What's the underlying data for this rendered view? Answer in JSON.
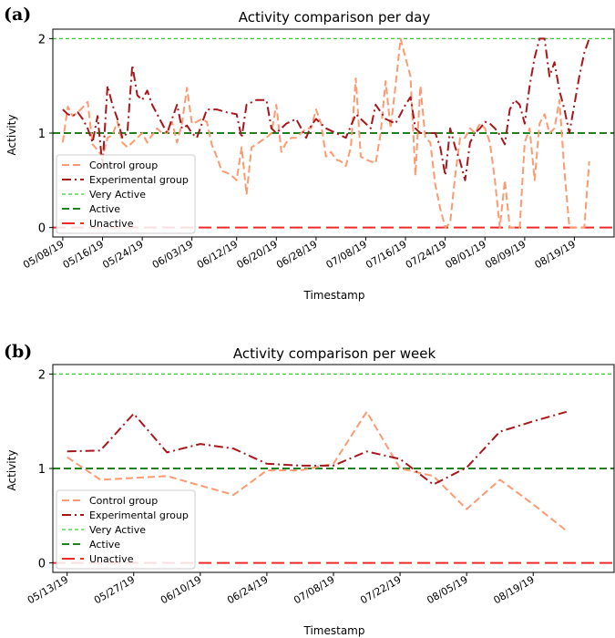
{
  "colors": {
    "control": "#fc9a72",
    "experimental": "#a8161c",
    "very_active": "#32cd32",
    "active": "#208020",
    "unactive": "#ee2b2b"
  },
  "chart_data": [
    {
      "type": "line",
      "panel": "(a)",
      "title": "Activity comparison per day",
      "xlabel": "Timestamp",
      "ylabel": "Activity",
      "ylim": [
        -0.1,
        2.1
      ],
      "yticks": [
        "0",
        "1",
        "2"
      ],
      "xlim": [
        "2019-05-06",
        "2019-08-27"
      ],
      "xticks": [
        {
          "date": "2019-05-08",
          "label": "05/08/19"
        },
        {
          "date": "2019-05-16",
          "label": "05/16/19"
        },
        {
          "date": "2019-05-24",
          "label": "05/24/19"
        },
        {
          "date": "2019-06-03",
          "label": "06/03/19"
        },
        {
          "date": "2019-06-12",
          "label": "06/12/19"
        },
        {
          "date": "2019-06-20",
          "label": "06/20/19"
        },
        {
          "date": "2019-06-28",
          "label": "06/28/19"
        },
        {
          "date": "2019-07-08",
          "label": "07/08/19"
        },
        {
          "date": "2019-07-16",
          "label": "07/16/19"
        },
        {
          "date": "2019-07-24",
          "label": "07/24/19"
        },
        {
          "date": "2019-08-01",
          "label": "08/01/19"
        },
        {
          "date": "2019-08-09",
          "label": "08/09/19"
        },
        {
          "date": "2019-08-19",
          "label": "08/19/19"
        }
      ],
      "legend": [
        "Control group",
        "Experimental group",
        "Very Active",
        "Active",
        "Unactive"
      ],
      "legend_position": "lower-left",
      "reference_lines": [
        {
          "name": "Very Active",
          "y": 2,
          "style": "dashed-fine",
          "color_key": "very_active"
        },
        {
          "name": "Active",
          "y": 1,
          "style": "dashed",
          "color_key": "active"
        },
        {
          "name": "Unactive",
          "y": 0,
          "style": "dashed-long",
          "color_key": "unactive"
        }
      ],
      "series": [
        {
          "name": "Control group",
          "style": "dashed",
          "color_key": "control",
          "x": [
            "2019-05-08",
            "2019-05-09",
            "2019-05-10",
            "2019-05-11",
            "2019-05-12",
            "2019-05-13",
            "2019-05-14",
            "2019-05-15",
            "2019-05-16",
            "2019-05-17",
            "2019-05-18",
            "2019-05-19",
            "2019-05-20",
            "2019-05-21",
            "2019-05-22",
            "2019-05-23",
            "2019-05-24",
            "2019-05-25",
            "2019-05-26",
            "2019-05-27",
            "2019-05-28",
            "2019-05-29",
            "2019-05-30",
            "2019-05-31",
            "2019-06-01",
            "2019-06-02",
            "2019-06-03",
            "2019-06-04",
            "2019-06-05",
            "2019-06-06",
            "2019-06-07",
            "2019-06-08",
            "2019-06-09",
            "2019-06-10",
            "2019-06-11",
            "2019-06-12",
            "2019-06-13",
            "2019-06-14",
            "2019-06-15",
            "2019-06-16",
            "2019-06-17",
            "2019-06-18",
            "2019-06-19",
            "2019-06-20",
            "2019-06-21",
            "2019-06-22",
            "2019-06-23",
            "2019-06-24",
            "2019-06-25",
            "2019-06-26",
            "2019-06-27",
            "2019-06-28",
            "2019-06-29",
            "2019-06-30",
            "2019-07-01",
            "2019-07-02",
            "2019-07-03",
            "2019-07-04",
            "2019-07-05",
            "2019-07-06",
            "2019-07-07",
            "2019-07-08",
            "2019-07-09",
            "2019-07-10",
            "2019-07-11",
            "2019-07-12",
            "2019-07-13",
            "2019-07-14",
            "2019-07-15",
            "2019-07-16",
            "2019-07-17",
            "2019-07-18",
            "2019-07-19",
            "2019-07-20",
            "2019-07-21",
            "2019-07-22",
            "2019-07-23",
            "2019-07-24",
            "2019-07-25",
            "2019-07-26",
            "2019-07-27",
            "2019-07-28",
            "2019-07-29",
            "2019-07-30",
            "2019-07-31",
            "2019-08-01",
            "2019-08-02",
            "2019-08-03",
            "2019-08-04",
            "2019-08-05",
            "2019-08-06",
            "2019-08-07",
            "2019-08-08",
            "2019-08-09",
            "2019-08-10",
            "2019-08-11",
            "2019-08-12",
            "2019-08-13",
            "2019-08-14",
            "2019-08-15",
            "2019-08-16",
            "2019-08-17",
            "2019-08-18",
            "2019-08-19",
            "2019-08-20",
            "2019-08-21",
            "2019-08-22"
          ],
          "values": [
            0.9,
            1.28,
            1.18,
            1.22,
            1.27,
            1.33,
            0.88,
            0.82,
            0.75,
            0.95,
            0.98,
            1.12,
            0.9,
            0.85,
            0.9,
            0.95,
            1.0,
            0.9,
            0.98,
            1.05,
            1.0,
            1.0,
            1.12,
            0.9,
            1.1,
            1.48,
            1.1,
            1.12,
            1.15,
            1.12,
            0.88,
            0.75,
            0.6,
            0.58,
            0.55,
            0.5,
            0.85,
            0.35,
            0.85,
            0.88,
            0.92,
            0.95,
            1.0,
            1.3,
            0.8,
            0.9,
            0.95,
            0.95,
            1.0,
            1.05,
            1.05,
            1.25,
            1.1,
            0.75,
            0.8,
            0.72,
            0.7,
            0.65,
            0.85,
            1.58,
            0.75,
            0.72,
            0.7,
            0.68,
            1.0,
            1.55,
            1.05,
            1.5,
            2.0,
            1.8,
            1.6,
            0.55,
            1.5,
            0.95,
            0.9,
            0.45,
            0.2,
            0.0,
            0.05,
            0.55,
            0.95,
            0.95,
            1.05,
            1.0,
            1.1,
            1.05,
            0.9,
            0.5,
            0.0,
            0.5,
            0.0,
            0.0,
            0.0,
            0.9,
            1.05,
            0.5,
            1.1,
            1.2,
            1.0,
            1.05,
            1.35,
            0.6,
            0.0,
            0.0,
            0.0,
            0.0,
            0.7
          ]
        },
        {
          "name": "Experimental group",
          "style": "dashdot",
          "color_key": "experimental",
          "x": [
            "2019-05-08",
            "2019-05-09",
            "2019-05-10",
            "2019-05-11",
            "2019-05-12",
            "2019-05-13",
            "2019-05-14",
            "2019-05-15",
            "2019-05-16",
            "2019-05-17",
            "2019-05-18",
            "2019-05-19",
            "2019-05-20",
            "2019-05-21",
            "2019-05-22",
            "2019-05-23",
            "2019-05-24",
            "2019-05-25",
            "2019-05-26",
            "2019-05-27",
            "2019-05-28",
            "2019-05-29",
            "2019-05-30",
            "2019-05-31",
            "2019-06-01",
            "2019-06-02",
            "2019-06-03",
            "2019-06-04",
            "2019-06-06",
            "2019-06-08",
            "2019-06-10",
            "2019-06-12",
            "2019-06-13",
            "2019-06-14",
            "2019-06-16",
            "2019-06-18",
            "2019-06-19",
            "2019-06-20",
            "2019-06-22",
            "2019-06-24",
            "2019-06-26",
            "2019-06-27",
            "2019-06-28",
            "2019-06-30",
            "2019-07-02",
            "2019-07-04",
            "2019-07-06",
            "2019-07-08",
            "2019-07-09",
            "2019-07-10",
            "2019-07-12",
            "2019-07-14",
            "2019-07-15",
            "2019-07-16",
            "2019-07-17",
            "2019-07-18",
            "2019-07-19",
            "2019-07-20",
            "2019-07-21",
            "2019-07-22",
            "2019-07-23",
            "2019-07-24",
            "2019-07-25",
            "2019-07-26",
            "2019-07-27",
            "2019-07-28",
            "2019-07-29",
            "2019-07-30",
            "2019-07-31",
            "2019-08-01",
            "2019-08-02",
            "2019-08-03",
            "2019-08-04",
            "2019-08-05",
            "2019-08-06",
            "2019-08-07",
            "2019-08-08",
            "2019-08-09",
            "2019-08-10",
            "2019-08-11",
            "2019-08-12",
            "2019-08-13",
            "2019-08-14",
            "2019-08-15",
            "2019-08-16",
            "2019-08-17",
            "2019-08-18",
            "2019-08-19",
            "2019-08-20",
            "2019-08-21",
            "2019-08-22"
          ],
          "values": [
            1.25,
            1.2,
            1.18,
            1.22,
            1.15,
            1.05,
            0.9,
            1.18,
            0.65,
            1.5,
            1.3,
            1.15,
            0.95,
            1.0,
            1.72,
            1.4,
            1.35,
            1.45,
            1.3,
            1.2,
            1.1,
            1.0,
            1.15,
            1.3,
            1.05,
            1.08,
            1.0,
            0.95,
            1.25,
            1.25,
            1.22,
            1.2,
            0.95,
            1.3,
            1.35,
            1.35,
            1.05,
            1.0,
            1.1,
            1.15,
            0.95,
            1.08,
            1.15,
            1.05,
            1.0,
            0.95,
            1.2,
            1.1,
            1.05,
            1.3,
            1.15,
            1.1,
            1.2,
            1.3,
            1.38,
            1.05,
            1.0,
            1.0,
            1.0,
            1.0,
            0.85,
            0.55,
            1.05,
            0.85,
            0.7,
            0.5,
            0.9,
            1.0,
            1.05,
            1.12,
            1.1,
            1.05,
            0.98,
            0.88,
            1.25,
            1.35,
            1.3,
            1.1,
            1.5,
            1.8,
            2.0,
            2.0,
            1.6,
            1.75,
            1.45,
            1.25,
            1.0,
            1.3,
            1.6,
            1.85,
            2.0
          ]
        }
      ]
    },
    {
      "type": "line",
      "panel": "(b)",
      "title": "Activity comparison per week",
      "xlabel": "Timestamp",
      "ylabel": "Activity",
      "ylim": [
        -0.1,
        2.1
      ],
      "yticks": [
        "0",
        "1",
        "2"
      ],
      "xlim": [
        "2019-05-10",
        "2019-09-05"
      ],
      "xticks": [
        {
          "date": "2019-05-13",
          "label": "05/13/19"
        },
        {
          "date": "2019-05-27",
          "label": "05/27/19"
        },
        {
          "date": "2019-06-10",
          "label": "06/10/19"
        },
        {
          "date": "2019-06-24",
          "label": "06/24/19"
        },
        {
          "date": "2019-07-08",
          "label": "07/08/19"
        },
        {
          "date": "2019-07-22",
          "label": "07/22/19"
        },
        {
          "date": "2019-08-05",
          "label": "08/05/19"
        },
        {
          "date": "2019-08-19",
          "label": "08/19/19"
        }
      ],
      "legend": [
        "Control group",
        "Experimental group",
        "Very Active",
        "Active",
        "Unactive"
      ],
      "legend_position": "lower-left",
      "reference_lines": [
        {
          "name": "Very Active",
          "y": 2,
          "style": "dashed-fine",
          "color_key": "very_active"
        },
        {
          "name": "Active",
          "y": 1,
          "style": "dashed",
          "color_key": "active"
        },
        {
          "name": "Unactive",
          "y": 0,
          "style": "dashed-long",
          "color_key": "unactive"
        }
      ],
      "series": [
        {
          "name": "Control group",
          "style": "dashed",
          "color_key": "control",
          "x": [
            "2019-05-13",
            "2019-05-20",
            "2019-05-27",
            "2019-06-03",
            "2019-06-10",
            "2019-06-17",
            "2019-06-24",
            "2019-07-01",
            "2019-07-08",
            "2019-07-15",
            "2019-07-22",
            "2019-07-29",
            "2019-08-05",
            "2019-08-12",
            "2019-08-19",
            "2019-08-26"
          ],
          "values": [
            1.12,
            0.88,
            0.9,
            0.92,
            0.82,
            0.72,
            0.98,
            0.98,
            1.05,
            1.6,
            1.0,
            0.92,
            0.57,
            0.88,
            0.62,
            0.34
          ]
        },
        {
          "name": "Experimental group",
          "style": "dashdot",
          "color_key": "experimental",
          "x": [
            "2019-05-13",
            "2019-05-20",
            "2019-05-27",
            "2019-06-03",
            "2019-06-10",
            "2019-06-17",
            "2019-06-24",
            "2019-07-01",
            "2019-07-08",
            "2019-07-15",
            "2019-07-22",
            "2019-07-29",
            "2019-08-05",
            "2019-08-12",
            "2019-08-19",
            "2019-08-26"
          ],
          "values": [
            1.18,
            1.19,
            1.58,
            1.17,
            1.26,
            1.21,
            1.05,
            1.03,
            1.03,
            1.18,
            1.1,
            0.83,
            1.01,
            1.39,
            1.5,
            1.6
          ]
        }
      ]
    }
  ]
}
